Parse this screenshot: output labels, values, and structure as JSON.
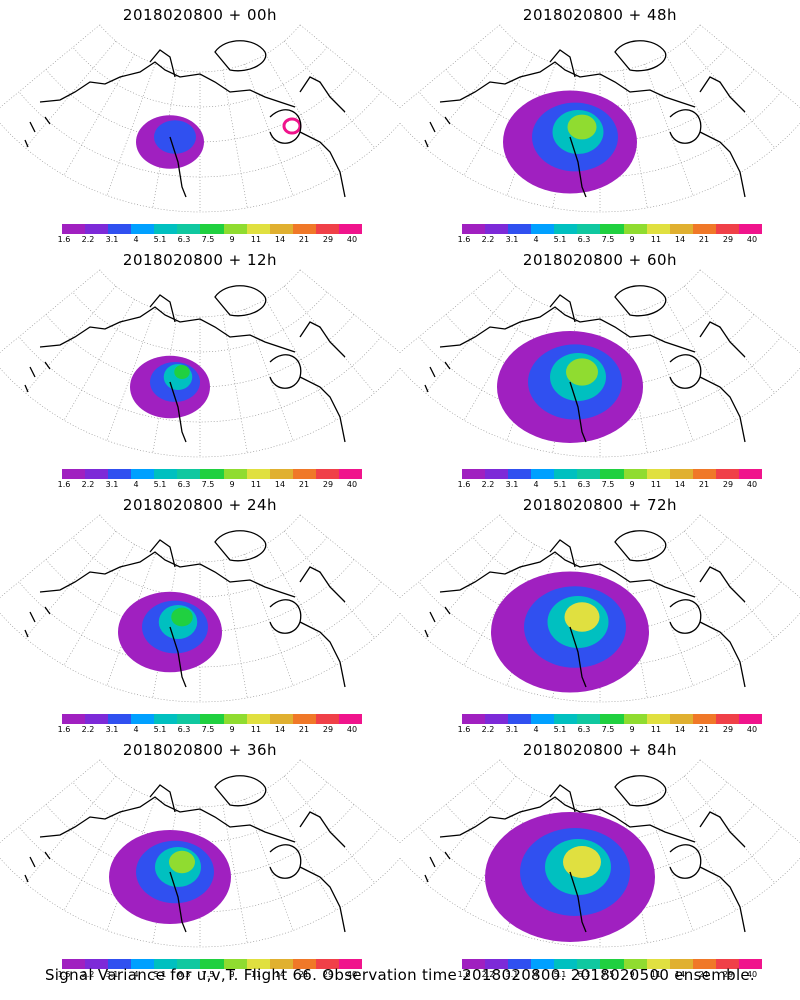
{
  "panels": [
    {
      "title": "2018020800 + 00h",
      "spread": 0.15
    },
    {
      "title": "2018020800 + 12h",
      "spread": 0.25
    },
    {
      "title": "2018020800 + 24h",
      "spread": 0.45
    },
    {
      "title": "2018020800 + 36h",
      "spread": 0.6
    },
    {
      "title": "2018020800 + 48h",
      "spread": 0.7
    },
    {
      "title": "2018020800 + 60h",
      "spread": 0.8
    },
    {
      "title": "2018020800 + 72h",
      "spread": 0.9
    },
    {
      "title": "2018020800 + 84h",
      "spread": 1.0
    }
  ],
  "colorbar": {
    "labels": [
      "1.6",
      "2.2",
      "3.1",
      "4",
      "5.1",
      "6.3",
      "7.5",
      "9",
      "11",
      "14",
      "21",
      "29",
      "40"
    ],
    "colors": [
      "#a020c0",
      "#7d2ad8",
      "#3050f0",
      "#00a0ff",
      "#00c0c0",
      "#10c8a0",
      "#20d040",
      "#90dc30",
      "#e0e040",
      "#e0b030",
      "#f07828",
      "#f04048",
      "#f0148c"
    ]
  },
  "caption": "Signal Variance for u,v,T. Flight 66. Observation time 2018020800. 2018020500 ensemble."
}
